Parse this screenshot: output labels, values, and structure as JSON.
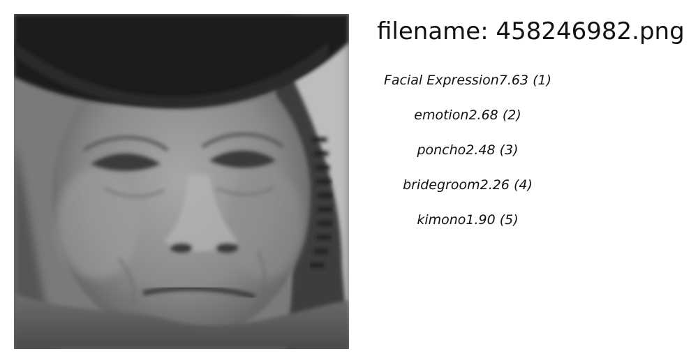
{
  "header": {
    "filename_label": "filename:",
    "filename_value": "458246982.png"
  },
  "predictions": [
    {
      "label": "Facial Expression",
      "score": "7.63",
      "rank": "(1)"
    },
    {
      "label": "emotion",
      "score": "2.68",
      "rank": "(2)"
    },
    {
      "label": "poncho",
      "score": "2.48",
      "rank": "(3)"
    },
    {
      "label": "bridegroom",
      "score": "2.26",
      "rank": "(4)"
    },
    {
      "label": "kimono",
      "score": "1.90",
      "rank": "(5)"
    }
  ],
  "image": {
    "subject": "grayscale close-up portrait photo"
  }
}
